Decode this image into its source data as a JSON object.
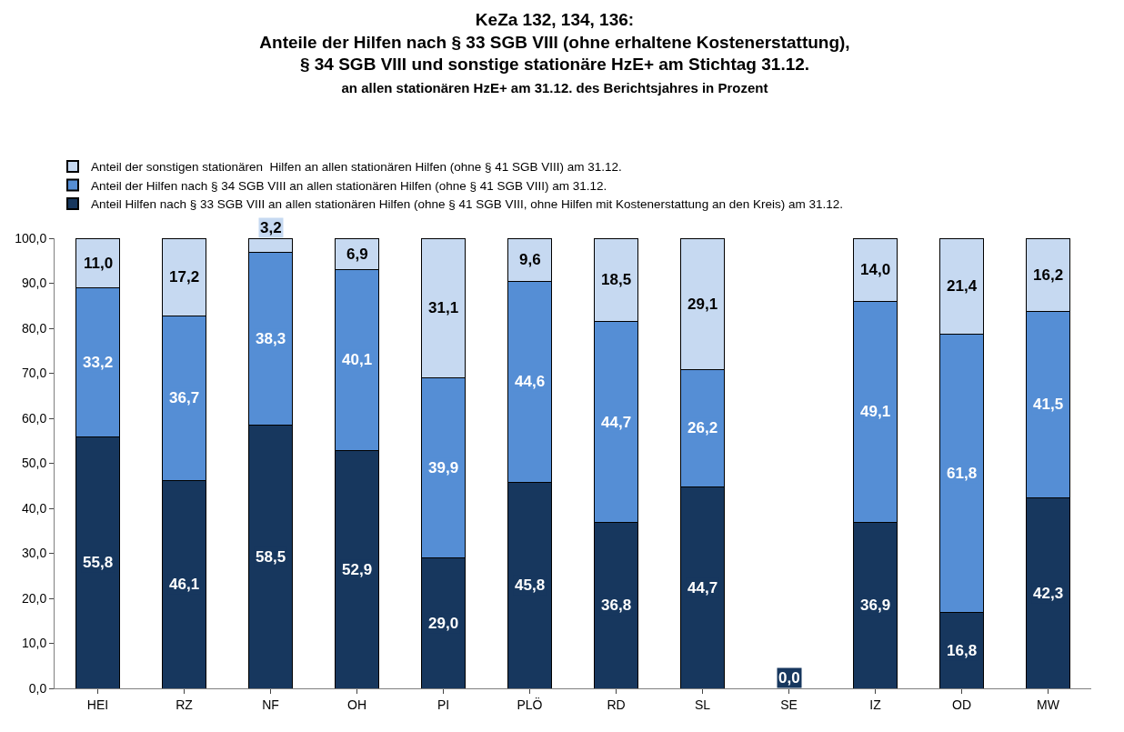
{
  "chart_data": {
    "type": "bar",
    "stacked": true,
    "title": "KeZa 132, 134, 136:\nAnteile der Hilfen nach § 33 SGB VIII (ohne erhaltene Kostenerstattung),\n§ 34 SGB VIII und sonstige stationäre HzE+ am Stichtag 31.12.",
    "subtitle": "an allen stationären HzE+ am 31.12. des Berichtsjahres in Prozent",
    "categories": [
      "HEI",
      "RZ",
      "NF",
      "OH",
      "PI",
      "PLÖ",
      "RD",
      "SL",
      "SE",
      "IZ",
      "OD",
      "MW"
    ],
    "series": [
      {
        "name": "Anteil Hilfen nach § 33 SGB VIII an allen stationären Hilfen (ohne § 41 SGB VIII, ohne Hilfen mit Kostenerstattung an den Kreis) am 31.12.",
        "color": "#17375e",
        "values": [
          55.8,
          46.1,
          58.5,
          52.9,
          29.0,
          45.8,
          36.8,
          44.7,
          0.0,
          36.9,
          16.8,
          42.3
        ],
        "value_labels": [
          "55,8",
          "46,1",
          "58,5",
          "52,9",
          "29,0",
          "45,8",
          "36,8",
          "44,7",
          "0,0",
          "36,9",
          "16,8",
          "42,3"
        ]
      },
      {
        "name": "Anteil der Hilfen nach § 34 SGB VIII an allen stationären Hilfen (ohne § 41 SGB VIII) am 31.12.",
        "color": "#558ed5",
        "values": [
          33.2,
          36.7,
          38.3,
          40.1,
          39.9,
          44.6,
          44.7,
          26.2,
          null,
          49.1,
          61.8,
          41.5
        ],
        "value_labels": [
          "33,2",
          "36,7",
          "38,3",
          "40,1",
          "39,9",
          "44,6",
          "44,7",
          "26,2",
          null,
          "49,1",
          "61,8",
          "41,5"
        ]
      },
      {
        "name": "Anteil der sonstigen stationären  Hilfen an allen stationären Hilfen (ohne § 41 SGB VIII) am 31.12.",
        "color": "#c6d9f1",
        "values": [
          11.0,
          17.2,
          3.2,
          6.9,
          31.1,
          9.6,
          18.5,
          29.1,
          null,
          14.0,
          21.4,
          16.2
        ],
        "value_labels": [
          "11,0",
          "17,2",
          "3,2",
          "6,9",
          "31,1",
          "9,6",
          "18,5",
          "29,1",
          null,
          "14,0",
          "21,4",
          "16,2"
        ]
      }
    ],
    "ylim": [
      0,
      100
    ],
    "yticks": [
      {
        "value": 0,
        "label": "0,0"
      },
      {
        "value": 10,
        "label": "10,0"
      },
      {
        "value": 20,
        "label": "20,0"
      },
      {
        "value": 30,
        "label": "30,0"
      },
      {
        "value": 40,
        "label": "40,0"
      },
      {
        "value": 50,
        "label": "50,0"
      },
      {
        "value": 60,
        "label": "60,0"
      },
      {
        "value": 70,
        "label": "70,0"
      },
      {
        "value": 80,
        "label": "80,0"
      },
      {
        "value": 90,
        "label": "90,0"
      },
      {
        "value": 100,
        "label": "100,0"
      }
    ],
    "legend": "top"
  }
}
